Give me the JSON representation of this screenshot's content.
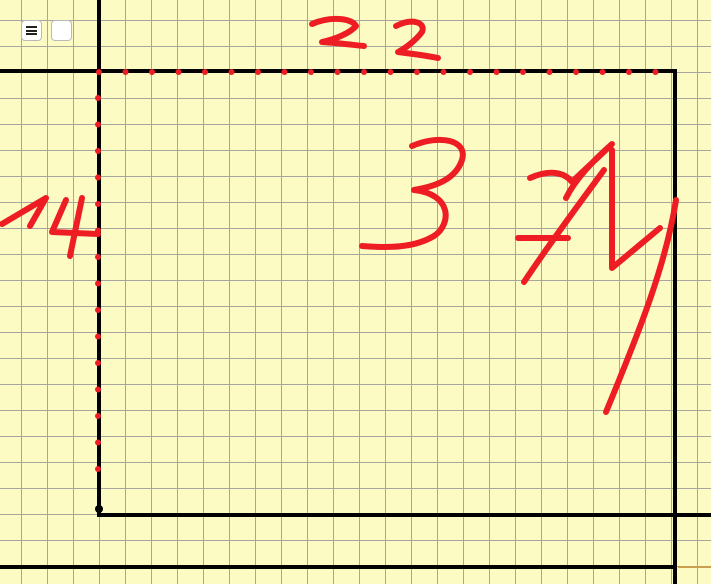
{
  "toolbar": {
    "menu_icon": "hamburger-menu-icon",
    "blank_icon": "blank-square"
  },
  "colors": {
    "background": "#fdfbc4",
    "grid": "#a7a7a0",
    "axis": "#000000",
    "ink": "#ee1d24"
  },
  "annotations": {
    "top_label": "22",
    "left_label": "14",
    "main_number": "3",
    "second_number": "74"
  }
}
